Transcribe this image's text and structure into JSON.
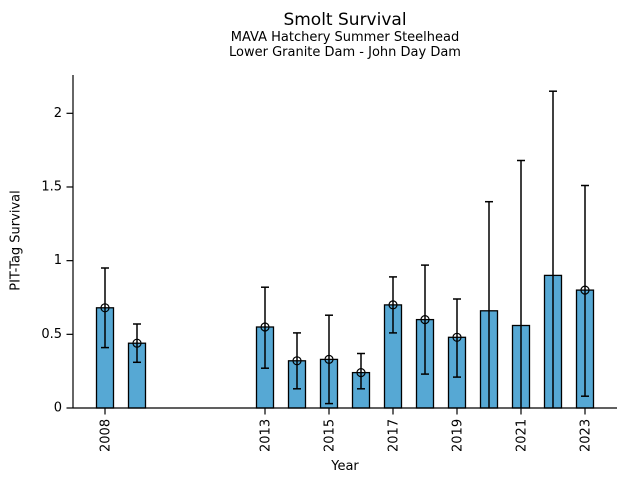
{
  "chart_data": {
    "type": "bar",
    "title": "Smolt Survival",
    "subtitle1": "MAVA Hatchery Summer Steelhead",
    "subtitle2": "Lower Granite Dam - John Day Dam",
    "xlabel": "Year",
    "ylabel": "PIT-Tag Survival",
    "xlim": [
      2007,
      2024
    ],
    "ylim": [
      0,
      2.26
    ],
    "yticks": [
      0,
      0.5,
      1,
      1.5,
      2
    ],
    "ytick_labels": [
      "0",
      "0.5",
      "1",
      "1.5",
      "2"
    ],
    "xticks": [
      2008,
      2013,
      2015,
      2017,
      2019,
      2021,
      2023
    ],
    "bar_color": "#56A8D4",
    "bar_edge_color": "#000000",
    "errorbar_color": "#000000",
    "legend": "none",
    "grid": false,
    "points": [
      {
        "year": 2008,
        "value": 0.68,
        "ci_low": 0.41,
        "ci_high": 0.95,
        "marker": true
      },
      {
        "year": 2009,
        "value": 0.44,
        "ci_low": 0.31,
        "ci_high": 0.57,
        "marker": true
      },
      {
        "year": 2013,
        "value": 0.55,
        "ci_low": 0.27,
        "ci_high": 0.82,
        "marker": true
      },
      {
        "year": 2014,
        "value": 0.32,
        "ci_low": 0.13,
        "ci_high": 0.51,
        "marker": true
      },
      {
        "year": 2015,
        "value": 0.33,
        "ci_low": 0.03,
        "ci_high": 0.63,
        "marker": true
      },
      {
        "year": 2016,
        "value": 0.24,
        "ci_low": 0.13,
        "ci_high": 0.37,
        "marker": true
      },
      {
        "year": 2017,
        "value": 0.7,
        "ci_low": 0.51,
        "ci_high": 0.89,
        "marker": true
      },
      {
        "year": 2018,
        "value": 0.6,
        "ci_low": 0.23,
        "ci_high": 0.97,
        "marker": true
      },
      {
        "year": 2019,
        "value": 0.48,
        "ci_low": 0.21,
        "ci_high": 0.74,
        "marker": true
      },
      {
        "year": 2020,
        "value": 0.66,
        "ci_low": 0.0,
        "ci_high": 1.4,
        "marker": false
      },
      {
        "year": 2021,
        "value": 0.56,
        "ci_low": 0.0,
        "ci_high": 1.68,
        "marker": false
      },
      {
        "year": 2022,
        "value": 0.9,
        "ci_low": 0.0,
        "ci_high": 2.15,
        "marker": false
      },
      {
        "year": 2023,
        "value": 0.8,
        "ci_low": 0.08,
        "ci_high": 1.51,
        "marker": true
      }
    ]
  }
}
